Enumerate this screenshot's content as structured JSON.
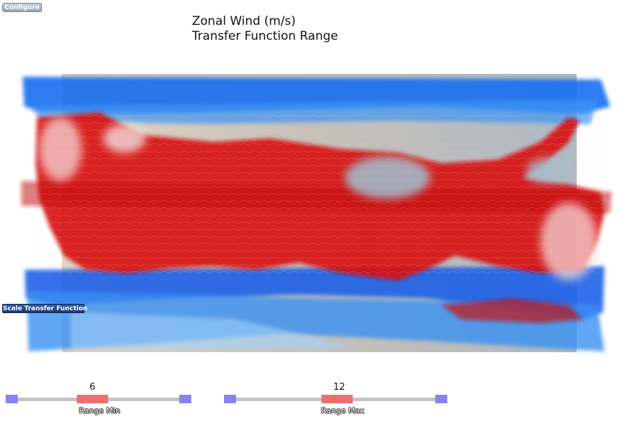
{
  "toolbar": {
    "configure_label": "Configure"
  },
  "title": {
    "line1": "Zonal Wind (m/s)",
    "line2": "Transfer Function Range"
  },
  "scale_button": {
    "label": "Scale Transfer Function"
  },
  "sliders": [
    {
      "name": "range-min",
      "value": "6",
      "label": "Range Min"
    },
    {
      "name": "range-max",
      "value": "12",
      "label": "Range Max"
    }
  ],
  "colors": {
    "positive_wind": "#e01010",
    "negative_wind": "#1a6ff0",
    "slider_knob": "#ef6f6f",
    "slider_end": "#8585f5",
    "slider_track": "#c4c4c4"
  }
}
